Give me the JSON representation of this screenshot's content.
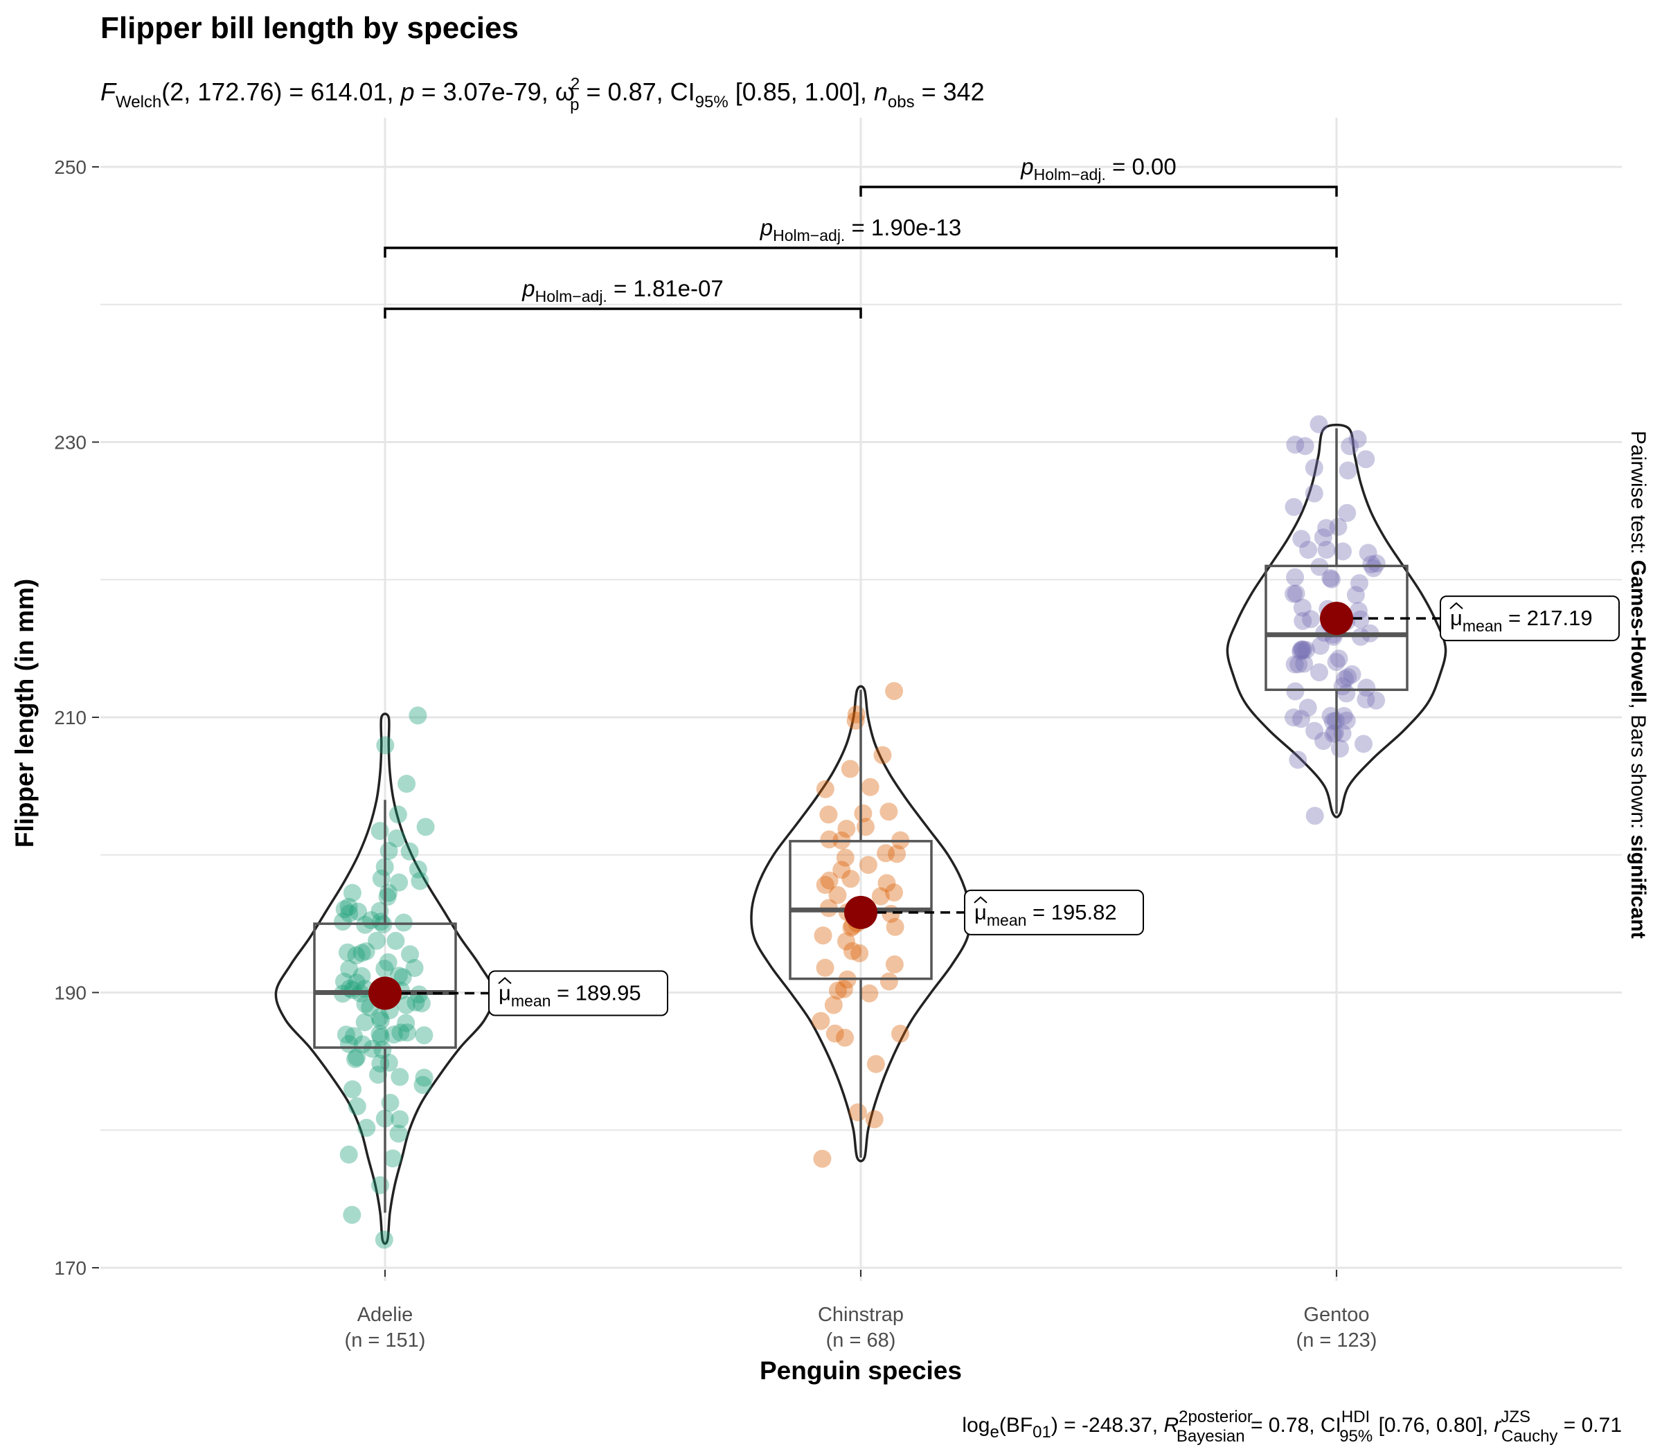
{
  "chart_data": {
    "type": "violin",
    "title": "Flipper bill length by species",
    "subtitle": {
      "F": "F",
      "F_sub": "Welch",
      "df": "(2, 172.76)",
      "stat": " = 614.01, ",
      "p": "p",
      "p_val": " = 3.07e-79, ",
      "omega": "ω",
      "omega_sup": "2",
      "omega_sub": "p",
      "omega_val": " = 0.87, ",
      "ci": "CI",
      "ci_sub": "95%",
      "ci_val": " [0.85, 1.00], ",
      "n": "n",
      "n_sub": "obs",
      "n_val": " = 342"
    },
    "xlabel": "Penguin species",
    "ylabel": "Flipper length (in mm)",
    "ylim": [
      165,
      253
    ],
    "yticks": [
      170,
      190,
      210,
      230,
      250
    ],
    "grid": true,
    "categories": [
      "Adelie",
      "Chinstrap",
      "Gentoo"
    ],
    "category_n": [
      "(n = 151)",
      "(n = 68)",
      "(n = 123)"
    ],
    "colors": [
      "#1b9e77",
      "#d95f02",
      "#7570b3"
    ],
    "mean_color": "#8b0000",
    "groups": [
      {
        "name": "Adelie",
        "mean": 189.95,
        "mean_label": "189.95",
        "box": {
          "min": 174,
          "q1": 186,
          "median": 190,
          "q3": 195,
          "max": 204
        },
        "violin_range": [
          172,
          210
        ],
        "violin_density": [
          [
            172,
            0.02
          ],
          [
            174,
            0.04
          ],
          [
            176,
            0.08
          ],
          [
            178,
            0.14
          ],
          [
            180,
            0.2
          ],
          [
            182,
            0.3
          ],
          [
            184,
            0.45
          ],
          [
            186,
            0.62
          ],
          [
            188,
            0.82
          ],
          [
            190,
            0.9
          ],
          [
            192,
            0.78
          ],
          [
            194,
            0.62
          ],
          [
            196,
            0.48
          ],
          [
            198,
            0.34
          ],
          [
            200,
            0.22
          ],
          [
            202,
            0.13
          ],
          [
            204,
            0.07
          ],
          [
            206,
            0.04
          ],
          [
            208,
            0.03
          ],
          [
            210,
            0.03
          ]
        ],
        "points": [
          172,
          174,
          176,
          178,
          178,
          180,
          180,
          181,
          181,
          182,
          182,
          183,
          183,
          184,
          184,
          184,
          185,
          185,
          185,
          185,
          186,
          186,
          186,
          186,
          187,
          187,
          187,
          187,
          187,
          187,
          187,
          187,
          188,
          188,
          188,
          188,
          189,
          189,
          189,
          189,
          189,
          189,
          190,
          190,
          190,
          190,
          190,
          190,
          190,
          190,
          190,
          190,
          191,
          191,
          191,
          191,
          191,
          192,
          192,
          192,
          192,
          193,
          193,
          193,
          193,
          193,
          194,
          194,
          195,
          195,
          195,
          195,
          195,
          195,
          196,
          196,
          196,
          196,
          196,
          197,
          197,
          197,
          198,
          198,
          198,
          199,
          199,
          200,
          200,
          201,
          202,
          202,
          203,
          205,
          208,
          210
        ]
      },
      {
        "name": "Chinstrap",
        "mean": 195.82,
        "mean_label": "195.82",
        "box": {
          "min": 178,
          "q1": 191,
          "median": 196,
          "q3": 201,
          "max": 212
        },
        "violin_range": [
          178,
          212
        ],
        "violin_density": [
          [
            178,
            0.03
          ],
          [
            180,
            0.06
          ],
          [
            182,
            0.12
          ],
          [
            184,
            0.2
          ],
          [
            186,
            0.3
          ],
          [
            188,
            0.42
          ],
          [
            190,
            0.58
          ],
          [
            192,
            0.75
          ],
          [
            194,
            0.88
          ],
          [
            196,
            0.9
          ],
          [
            198,
            0.84
          ],
          [
            200,
            0.72
          ],
          [
            202,
            0.55
          ],
          [
            204,
            0.38
          ],
          [
            206,
            0.23
          ],
          [
            208,
            0.12
          ],
          [
            210,
            0.06
          ],
          [
            212,
            0.03
          ]
        ],
        "points": [
          178,
          181,
          181,
          185,
          187,
          187,
          187,
          188,
          189,
          190,
          190,
          190,
          191,
          191,
          192,
          192,
          193,
          193,
          194,
          194,
          195,
          195,
          195,
          195,
          196,
          196,
          196,
          196,
          197,
          197,
          197,
          198,
          198,
          198,
          198,
          199,
          199,
          200,
          200,
          200,
          201,
          201,
          201,
          202,
          202,
          203,
          203,
          203,
          205,
          205,
          206,
          207,
          210,
          210,
          212
        ]
      },
      {
        "name": "Gentoo",
        "mean": 217.19,
        "mean_label": "217.19",
        "box": {
          "min": 203,
          "q1": 212,
          "median": 216,
          "q3": 221,
          "max": 231
        },
        "violin_range": [
          203,
          231
        ],
        "violin_density": [
          [
            203,
            0.03
          ],
          [
            205,
            0.1
          ],
          [
            207,
            0.3
          ],
          [
            209,
            0.55
          ],
          [
            211,
            0.75
          ],
          [
            213,
            0.85
          ],
          [
            215,
            0.9
          ],
          [
            217,
            0.82
          ],
          [
            219,
            0.7
          ],
          [
            221,
            0.55
          ],
          [
            223,
            0.4
          ],
          [
            225,
            0.28
          ],
          [
            227,
            0.2
          ],
          [
            229,
            0.15
          ],
          [
            231,
            0.1
          ]
        ],
        "points": [
          203,
          207,
          208,
          208,
          208,
          209,
          209,
          209,
          209,
          210,
          210,
          210,
          210,
          210,
          210,
          210,
          211,
          211,
          211,
          212,
          212,
          212,
          212,
          213,
          213,
          213,
          213,
          214,
          214,
          214,
          214,
          214,
          215,
          215,
          215,
          215,
          215,
          215,
          216,
          216,
          216,
          216,
          216,
          217,
          217,
          217,
          217,
          217,
          217,
          218,
          218,
          218,
          219,
          219,
          219,
          220,
          220,
          220,
          220,
          221,
          221,
          221,
          221,
          222,
          222,
          222,
          222,
          223,
          223,
          224,
          224,
          225,
          225,
          226,
          228,
          228,
          229,
          230,
          230,
          230,
          230,
          231
        ]
      }
    ],
    "comparisons": [
      {
        "from": 1,
        "to": 2,
        "p_value": "0.00"
      },
      {
        "from": 0,
        "to": 2,
        "p_value": "1.90e-13"
      },
      {
        "from": 0,
        "to": 1,
        "p_value": "1.81e-07"
      }
    ],
    "p_label": "p",
    "p_sub": "Holm−adj.",
    "mean_label_mu": "μ",
    "mean_label_sub": "mean",
    "side_note": {
      "prefix": "Pairwise test: ",
      "test": "Games-Howell",
      "middle": ", Bars shown: ",
      "shown": "significant"
    },
    "caption": {
      "log": "log",
      "log_sub": "e",
      "bf": "(BF",
      "bf_sub": "01",
      "bf_val": ") = -248.37, ",
      "r": "R",
      "r_sup": "2",
      "r_sup2": "posterior",
      "r_sub": "Bayesian",
      "r_val": " = 0.78, ",
      "ci": "CI",
      "ci_sup": "HDI",
      "ci_sub": "95%",
      "ci_val": " [0.76, 0.80], ",
      "rc": "r",
      "rc_sup": "JZS",
      "rc_sub": "Cauchy",
      "rc_val": " = 0.71"
    }
  }
}
